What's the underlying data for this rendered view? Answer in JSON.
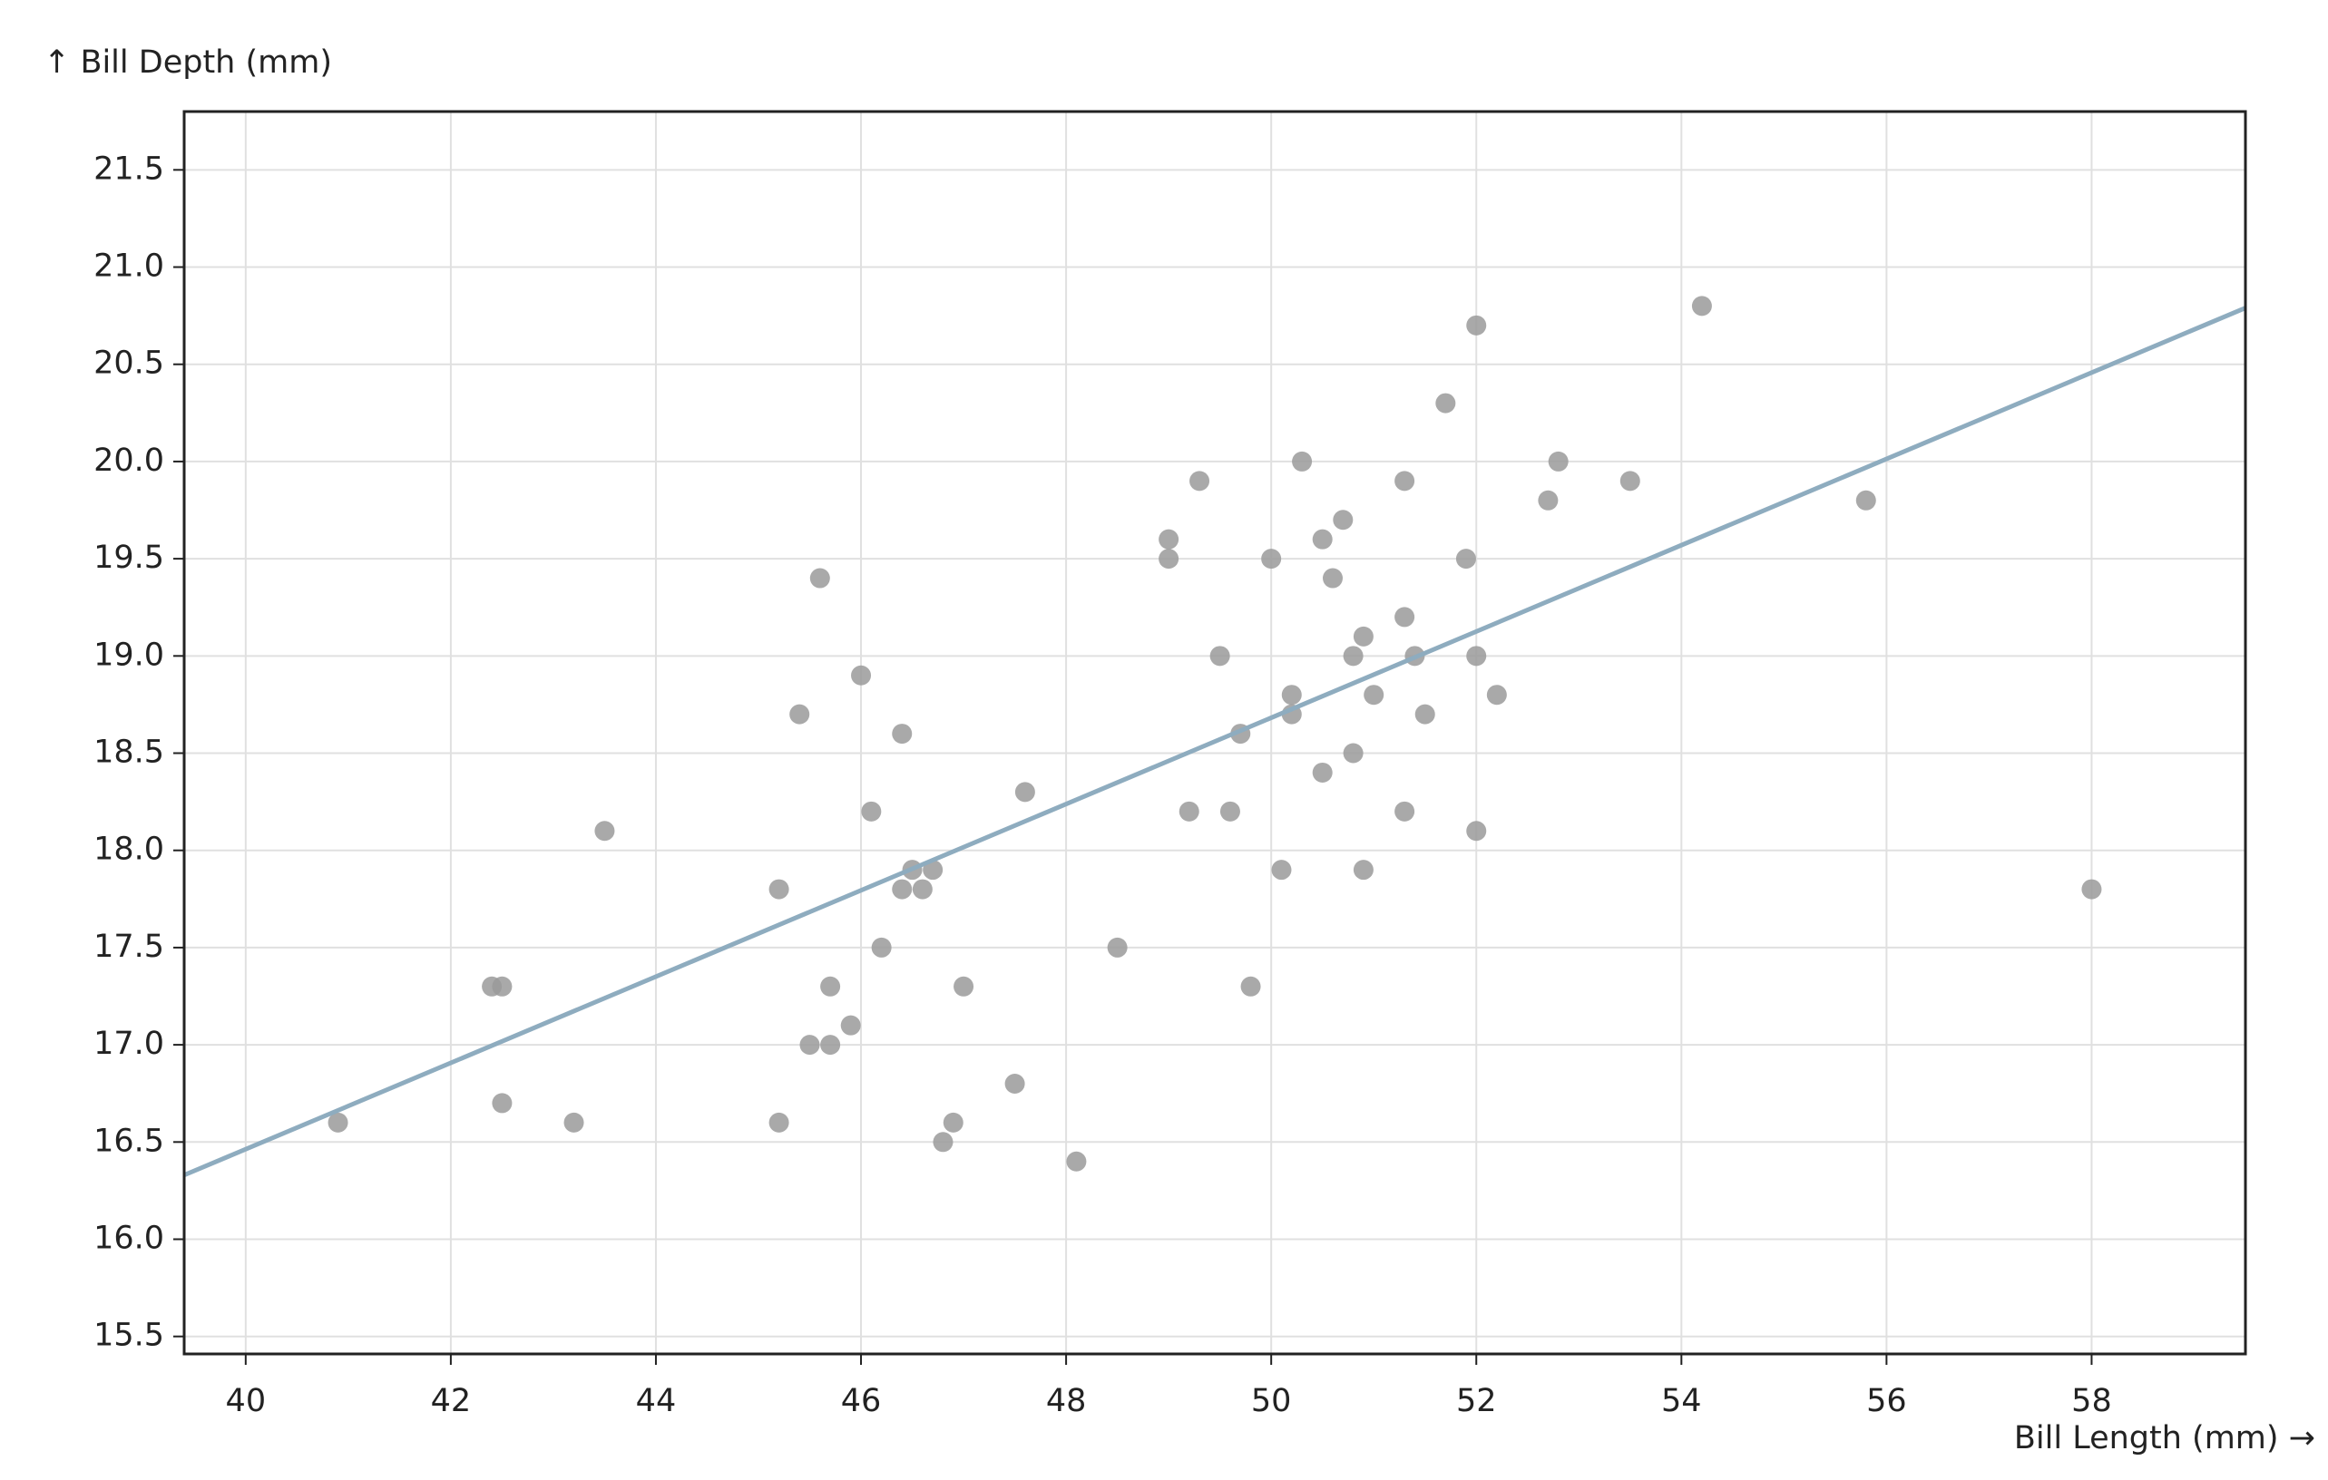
{
  "chart_data": {
    "type": "scatter",
    "x_label": "Bill Length (mm) →",
    "y_label": "↑ Bill Depth (mm)",
    "xlim": [
      39.4,
      59.5
    ],
    "ylim": [
      15.41,
      21.8
    ],
    "xticks": [
      40,
      42,
      44,
      46,
      48,
      50,
      52,
      54,
      56,
      58
    ],
    "yticks": [
      15.5,
      {
        "value": 16,
        "label": "16.0"
      },
      16.5,
      {
        "value": 17,
        "label": "17.0"
      },
      17.5,
      {
        "value": 18,
        "label": "18.0"
      },
      18.5,
      {
        "value": 19,
        "label": "19.0"
      },
      19.5,
      {
        "value": 20,
        "label": "20.0"
      },
      20.5,
      {
        "value": 21,
        "label": "21.0"
      },
      21.5
    ],
    "grid": true,
    "color": "#9a9a9a",
    "x": [
      40.9,
      42.4,
      42.5,
      42.5,
      43.2,
      43.5,
      45.2,
      45.2,
      45.4,
      45.5,
      45.6,
      45.7,
      45.7,
      45.9,
      46.0,
      46.1,
      46.2,
      46.4,
      46.4,
      46.5,
      46.6,
      46.7,
      46.8,
      46.9,
      47.0,
      47.5,
      47.6,
      48.1,
      48.5,
      49.0,
      49.0,
      49.2,
      49.3,
      49.5,
      49.6,
      49.7,
      49.8,
      50.0,
      50.1,
      50.2,
      50.2,
      50.3,
      50.5,
      50.5,
      50.6,
      50.7,
      50.8,
      50.8,
      50.9,
      50.9,
      51.0,
      51.3,
      51.3,
      51.3,
      51.4,
      51.5,
      51.7,
      51.9,
      52.0,
      52.0,
      52.0,
      52.2,
      52.7,
      52.8,
      53.5,
      54.2,
      55.8,
      58.0
    ],
    "values": [
      16.6,
      17.3,
      17.3,
      16.7,
      16.6,
      18.1,
      17.8,
      16.6,
      18.7,
      17.0,
      19.4,
      17.3,
      17.0,
      17.1,
      18.9,
      18.2,
      17.5,
      18.6,
      17.8,
      17.9,
      17.8,
      17.9,
      16.5,
      16.6,
      17.3,
      16.8,
      18.3,
      16.4,
      17.5,
      19.5,
      19.6,
      18.2,
      19.9,
      19.0,
      18.2,
      18.6,
      17.3,
      19.5,
      17.9,
      18.8,
      18.7,
      20.0,
      19.6,
      18.4,
      19.4,
      19.7,
      19.0,
      18.5,
      19.1,
      17.9,
      18.8,
      19.9,
      19.2,
      18.2,
      19.0,
      18.7,
      20.3,
      19.5,
      20.7,
      19.0,
      18.1,
      18.8,
      19.8,
      20.0,
      19.9,
      20.8,
      19.8,
      17.8
    ],
    "trend": {
      "color": "#8eacbf",
      "x": [
        39.4,
        59.5
      ],
      "y": [
        16.33,
        20.79
      ]
    }
  }
}
